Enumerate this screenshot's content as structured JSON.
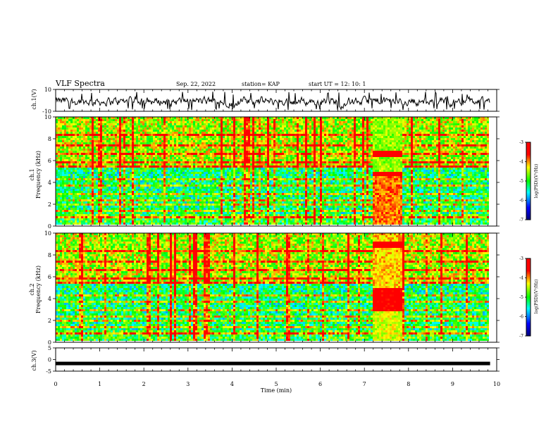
{
  "header": {
    "title": "VLF Spectra",
    "date": "Sep. 22, 2022",
    "station": "station= KAP",
    "start": "start  UT =   12: 10: 1"
  },
  "chart_data": [
    {
      "type": "line",
      "panel": "ch1-waveform",
      "ylabel": "ch.1(V)",
      "ylim": [
        -10,
        10
      ],
      "yticks": [
        "10",
        "-10"
      ],
      "xlim": [
        0,
        10
      ],
      "description_values": {
        "typical_range": [
          -8,
          6
        ]
      }
    },
    {
      "type": "heatmap",
      "panel": "ch1-spectrogram",
      "ylabel": "ch.1\nFrequency (kHz)",
      "ylabel_line1": "ch.1",
      "ylabel_line2": "Frequency (kHz)",
      "ylim": [
        0,
        10
      ],
      "yticks": [
        "0",
        "2",
        "4",
        "6",
        "8",
        "10"
      ],
      "xlim": [
        0,
        9.85
      ],
      "colorbar": {
        "label": "log(PSD)(V²/Hz)",
        "range": [
          -7,
          -3
        ],
        "ticks": [
          "-3",
          "-4",
          "-5",
          "-6",
          "-7"
        ]
      }
    },
    {
      "type": "heatmap",
      "panel": "ch2-spectrogram",
      "ylabel_line1": "ch.2",
      "ylabel_line2": "Frequency (kHz)",
      "ylim": [
        0,
        10
      ],
      "yticks": [
        "0",
        "2",
        "4",
        "6",
        "8",
        "10"
      ],
      "xlim": [
        0,
        9.85
      ],
      "colorbar": {
        "label": "log(PSD)(V²/Hz)",
        "range": [
          -7,
          -3
        ],
        "ticks": [
          "-3",
          "-4",
          "-5",
          "-6",
          "-7"
        ]
      }
    },
    {
      "type": "line",
      "panel": "ch3-waveform",
      "ylabel": "ch.3(V)",
      "ylim": [
        -5,
        5
      ],
      "yticks": [
        "5",
        "0",
        "-5"
      ],
      "level": -1.7,
      "xlim": [
        0,
        10
      ]
    }
  ],
  "xaxis": {
    "label": "Time (min)",
    "ticks": [
      "0",
      "1",
      "2",
      "3",
      "4",
      "5",
      "6",
      "7",
      "8",
      "9",
      "10"
    ]
  },
  "colors": {
    "waveform": "#000000",
    "colormap": [
      "#000080",
      "#0000ff",
      "#00ffff",
      "#00ff00",
      "#ffff00",
      "#ff0000",
      "#ffffff"
    ]
  }
}
